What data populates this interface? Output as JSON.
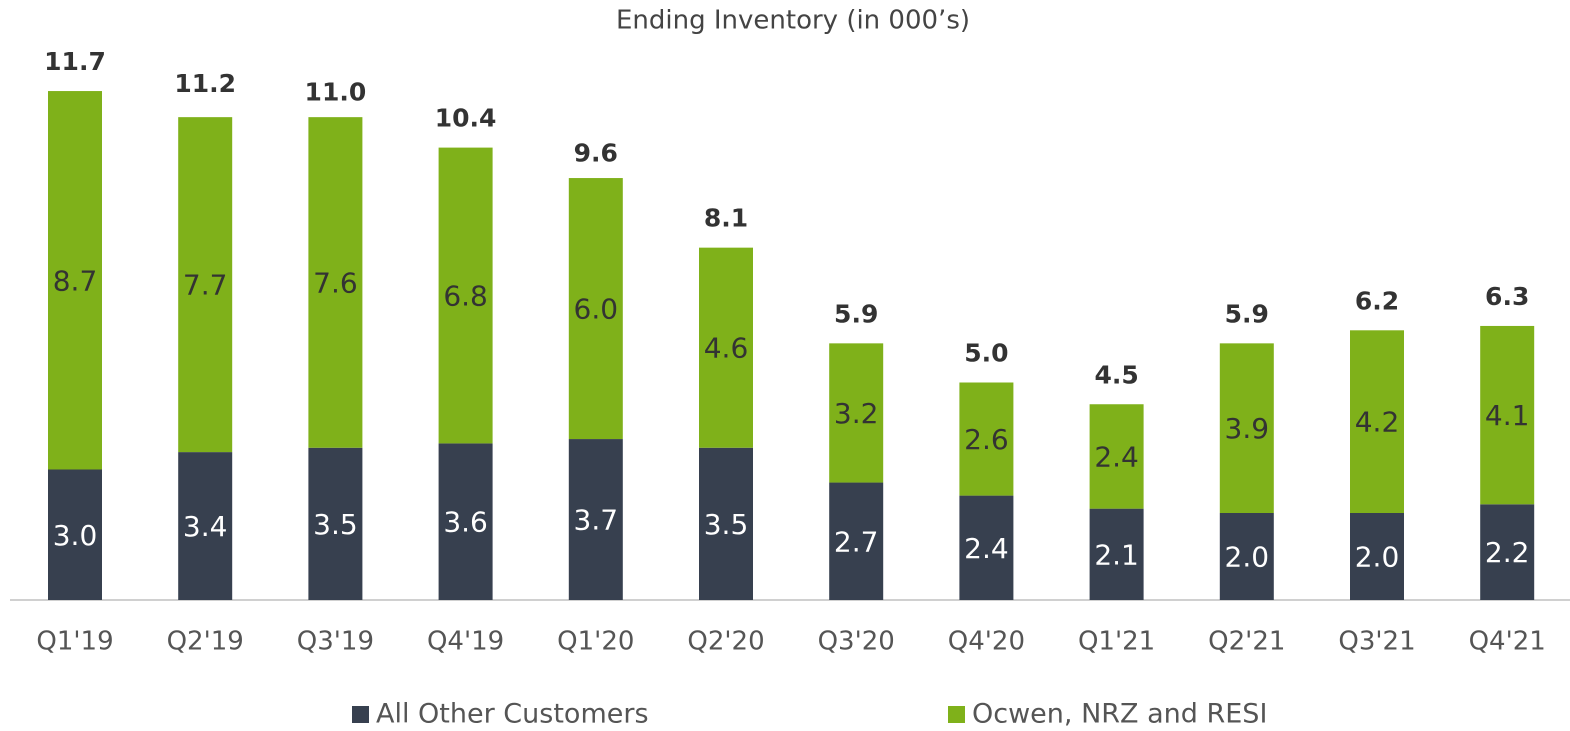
{
  "chart_data": {
    "type": "stacked_bar",
    "title": "Ending Inventory (in 000’s)",
    "categories": [
      "Q1'19",
      "Q2'19",
      "Q3'19",
      "Q4'19",
      "Q1'20",
      "Q2'20",
      "Q3'20",
      "Q4'20",
      "Q1'21",
      "Q2'21",
      "Q3'21",
      "Q4'21"
    ],
    "series": [
      {
        "name": "All Other Customers",
        "color": "#37404f",
        "values": [
          3.0,
          3.4,
          3.5,
          3.6,
          3.7,
          3.5,
          2.7,
          2.4,
          2.1,
          2.0,
          2.0,
          2.2
        ],
        "value_labels": [
          "3.0",
          "3.4",
          "3.5",
          "3.6",
          "3.7",
          "3.5",
          "2.7",
          "2.4",
          "2.1",
          "2.0",
          "2.0",
          "2.2"
        ]
      },
      {
        "name": "Ocwen, NRZ and RESI",
        "color": "#7fb11a",
        "values": [
          8.7,
          7.7,
          7.6,
          6.8,
          6.0,
          4.6,
          3.2,
          2.6,
          2.4,
          3.9,
          4.2,
          4.1
        ],
        "value_labels": [
          "8.7",
          "7.7",
          "7.6",
          "6.8",
          "6.0",
          "4.6",
          "3.2",
          "2.6",
          "2.4",
          "3.9",
          "4.2",
          "4.1"
        ]
      }
    ],
    "totals": {
      "values": [
        11.7,
        11.2,
        11.0,
        10.4,
        9.6,
        8.1,
        5.9,
        5.0,
        4.5,
        5.9,
        6.2,
        6.3
      ],
      "value_labels": [
        "11.7",
        "11.2",
        "11.0",
        "10.4",
        "9.6",
        "8.1",
        "5.9",
        "5.0",
        "4.5",
        "5.9",
        "6.2",
        "6.3"
      ]
    }
  }
}
